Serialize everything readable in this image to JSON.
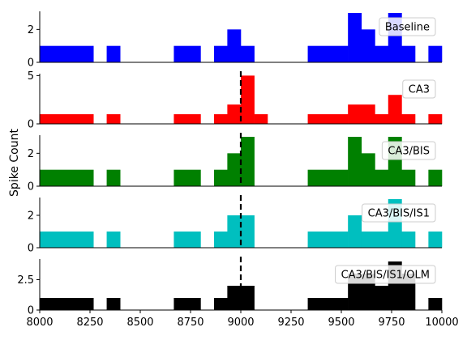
{
  "chart_data": {
    "type": "bar",
    "ylabel": "Spike Count",
    "xlim": [
      8000,
      10000
    ],
    "xticks": [
      8000,
      8250,
      8500,
      8750,
      9000,
      9250,
      9500,
      9750,
      10000
    ],
    "bin_width": 66.7,
    "marker_x": 9000,
    "panels": [
      {
        "name": "Baseline",
        "color": "#0000ff",
        "ylim": [
          0,
          3.1
        ],
        "yticks": [
          0,
          2
        ],
        "marker": false,
        "bins": [
          {
            "x0": 8000,
            "x1": 8267,
            "count": 1
          },
          {
            "x0": 8333,
            "x1": 8400,
            "count": 1
          },
          {
            "x0": 8667,
            "x1": 8800,
            "count": 1
          },
          {
            "x0": 8867,
            "x1": 8933,
            "count": 1
          },
          {
            "x0": 8933,
            "x1": 9000,
            "count": 2
          },
          {
            "x0": 9000,
            "x1": 9067,
            "count": 1
          },
          {
            "x0": 9333,
            "x1": 9533,
            "count": 1
          },
          {
            "x0": 9533,
            "x1": 9600,
            "count": 3
          },
          {
            "x0": 9600,
            "x1": 9667,
            "count": 2
          },
          {
            "x0": 9667,
            "x1": 9733,
            "count": 1
          },
          {
            "x0": 9733,
            "x1": 9800,
            "count": 3
          },
          {
            "x0": 9800,
            "x1": 9867,
            "count": 1
          },
          {
            "x0": 9933,
            "x1": 10000,
            "count": 1
          }
        ]
      },
      {
        "name": "CA3",
        "color": "#ff0000",
        "ylim": [
          0,
          5.2
        ],
        "yticks": [
          0,
          5
        ],
        "marker": true,
        "bins": [
          {
            "x0": 8000,
            "x1": 8267,
            "count": 1
          },
          {
            "x0": 8333,
            "x1": 8400,
            "count": 1
          },
          {
            "x0": 8667,
            "x1": 8800,
            "count": 1
          },
          {
            "x0": 8867,
            "x1": 8933,
            "count": 1
          },
          {
            "x0": 8933,
            "x1": 9000,
            "count": 2
          },
          {
            "x0": 9000,
            "x1": 9067,
            "count": 5
          },
          {
            "x0": 9067,
            "x1": 9133,
            "count": 1
          },
          {
            "x0": 9333,
            "x1": 9533,
            "count": 1
          },
          {
            "x0": 9533,
            "x1": 9667,
            "count": 2
          },
          {
            "x0": 9667,
            "x1": 9733,
            "count": 1
          },
          {
            "x0": 9733,
            "x1": 9800,
            "count": 3
          },
          {
            "x0": 9800,
            "x1": 9867,
            "count": 1
          },
          {
            "x0": 9933,
            "x1": 10000,
            "count": 1
          }
        ]
      },
      {
        "name": "CA3/BIS",
        "color": "#008000",
        "ylim": [
          0,
          3.1
        ],
        "yticks": [
          0,
          2
        ],
        "marker": true,
        "bins": [
          {
            "x0": 8000,
            "x1": 8267,
            "count": 1
          },
          {
            "x0": 8333,
            "x1": 8400,
            "count": 1
          },
          {
            "x0": 8667,
            "x1": 8800,
            "count": 1
          },
          {
            "x0": 8867,
            "x1": 8933,
            "count": 1
          },
          {
            "x0": 8933,
            "x1": 9000,
            "count": 2
          },
          {
            "x0": 9000,
            "x1": 9067,
            "count": 3
          },
          {
            "x0": 9333,
            "x1": 9533,
            "count": 1
          },
          {
            "x0": 9533,
            "x1": 9600,
            "count": 3
          },
          {
            "x0": 9600,
            "x1": 9667,
            "count": 2
          },
          {
            "x0": 9667,
            "x1": 9733,
            "count": 1
          },
          {
            "x0": 9733,
            "x1": 9800,
            "count": 3
          },
          {
            "x0": 9800,
            "x1": 9867,
            "count": 1
          },
          {
            "x0": 9933,
            "x1": 10000,
            "count": 1
          }
        ]
      },
      {
        "name": "CA3/BIS/IS1",
        "color": "#00bfbf",
        "ylim": [
          0,
          3.1
        ],
        "yticks": [
          0,
          2
        ],
        "marker": true,
        "bins": [
          {
            "x0": 8000,
            "x1": 8267,
            "count": 1
          },
          {
            "x0": 8333,
            "x1": 8400,
            "count": 1
          },
          {
            "x0": 8667,
            "x1": 8800,
            "count": 1
          },
          {
            "x0": 8867,
            "x1": 8933,
            "count": 1
          },
          {
            "x0": 8933,
            "x1": 9067,
            "count": 2
          },
          {
            "x0": 9333,
            "x1": 9533,
            "count": 1
          },
          {
            "x0": 9533,
            "x1": 9600,
            "count": 2
          },
          {
            "x0": 9600,
            "x1": 9667,
            "count": 1
          },
          {
            "x0": 9667,
            "x1": 9733,
            "count": 1
          },
          {
            "x0": 9733,
            "x1": 9800,
            "count": 3
          },
          {
            "x0": 9800,
            "x1": 9867,
            "count": 1
          },
          {
            "x0": 9933,
            "x1": 10000,
            "count": 1
          }
        ]
      },
      {
        "name": "CA3/BIS/IS1/OLM",
        "color": "#000000",
        "ylim": [
          0,
          4.2
        ],
        "yticks": [
          0,
          2.5
        ],
        "marker": true,
        "bins": [
          {
            "x0": 8000,
            "x1": 8267,
            "count": 1
          },
          {
            "x0": 8333,
            "x1": 8400,
            "count": 1
          },
          {
            "x0": 8667,
            "x1": 8800,
            "count": 1
          },
          {
            "x0": 8867,
            "x1": 8933,
            "count": 1
          },
          {
            "x0": 8933,
            "x1": 9067,
            "count": 2
          },
          {
            "x0": 9333,
            "x1": 9533,
            "count": 1
          },
          {
            "x0": 9533,
            "x1": 9667,
            "count": 3
          },
          {
            "x0": 9667,
            "x1": 9733,
            "count": 2
          },
          {
            "x0": 9733,
            "x1": 9800,
            "count": 4
          },
          {
            "x0": 9800,
            "x1": 9867,
            "count": 3
          },
          {
            "x0": 9933,
            "x1": 10000,
            "count": 1
          }
        ]
      }
    ]
  }
}
